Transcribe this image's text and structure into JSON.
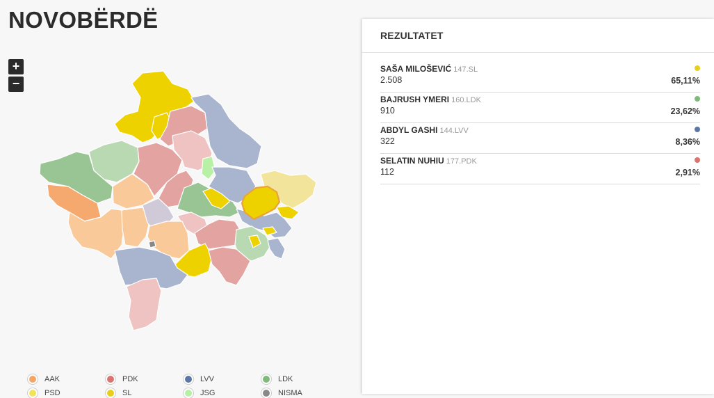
{
  "page": {
    "title": "NOVOBËRDË"
  },
  "zoom": {
    "in_label": "+",
    "out_label": "−"
  },
  "panel": {
    "title": "REZULTATET",
    "candidates": [
      {
        "name": "SAŠA MILOŠEVIĆ",
        "code": "147.SL",
        "votes": "2.508",
        "percent": "65,11%",
        "color": "#e8cf1e"
      },
      {
        "name": "BAJRUSH YMERI",
        "code": "160.LDK",
        "votes": "910",
        "percent": "23,62%",
        "color": "#7fba7a"
      },
      {
        "name": "ABDYL GASHI",
        "code": "144.LVV",
        "votes": "322",
        "percent": "8,36%",
        "color": "#5d77a5"
      },
      {
        "name": "SELATIN NUHIU",
        "code": "177.PDK",
        "votes": "112",
        "percent": "2,91%",
        "color": "#d9746f"
      }
    ]
  },
  "legend": [
    {
      "label": "AAK",
      "color": "#f5a566"
    },
    {
      "label": "PDK",
      "color": "#d9746f"
    },
    {
      "label": "LVV",
      "color": "#5d77a5"
    },
    {
      "label": "LDK",
      "color": "#7fba7a"
    },
    {
      "label": "PSD",
      "color": "#f2e35a"
    },
    {
      "label": "SL",
      "color": "#e8cf1e"
    },
    {
      "label": "JSG",
      "color": "#b7efa6"
    },
    {
      "label": "NISMA",
      "color": "#888888"
    }
  ],
  "map": {
    "highlighted": "Novobërdë",
    "colors": {
      "sl": "#eed200",
      "psd_light": "#f2e49a",
      "pdk": "#e3a3a0",
      "pdk_light": "#efc3c1",
      "lvv": "#a9b5cf",
      "ldk": "#99c493",
      "ldk_light": "#b9d9b3",
      "aak": "#f6a96e",
      "aak_light": "#f9c99a",
      "jsg": "#b8f0a6",
      "nisma": "#cfc9d8",
      "highlight_border": "#e8a43a"
    }
  }
}
